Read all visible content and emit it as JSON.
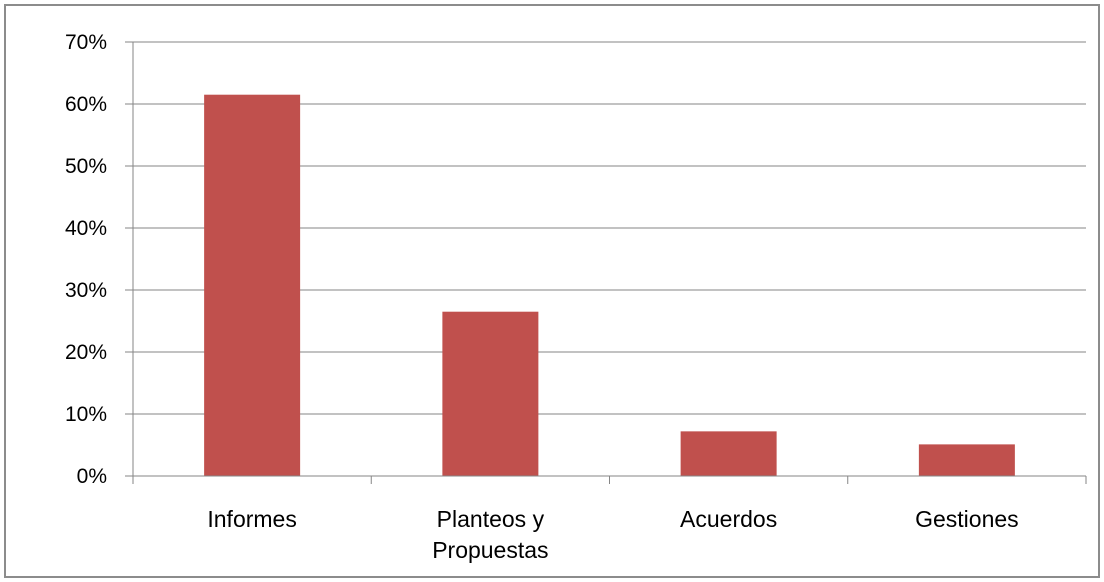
{
  "chart_data": {
    "type": "bar",
    "title": "",
    "xlabel": "",
    "ylabel": "",
    "categories": [
      [
        "Informes"
      ],
      [
        "Planteos y",
        "Propuestas"
      ],
      [
        "Acuerdos"
      ],
      [
        "Gestiones"
      ]
    ],
    "values": [
      61.5,
      26.5,
      7.2,
      5.1
    ],
    "y_ticks": [
      "0%",
      "10%",
      "20%",
      "30%",
      "40%",
      "50%",
      "60%",
      "70%"
    ],
    "ylim": [
      0,
      70
    ],
    "grid": true,
    "legend": "none",
    "bar_color": "#C0504D",
    "grid_color": "#868686"
  }
}
